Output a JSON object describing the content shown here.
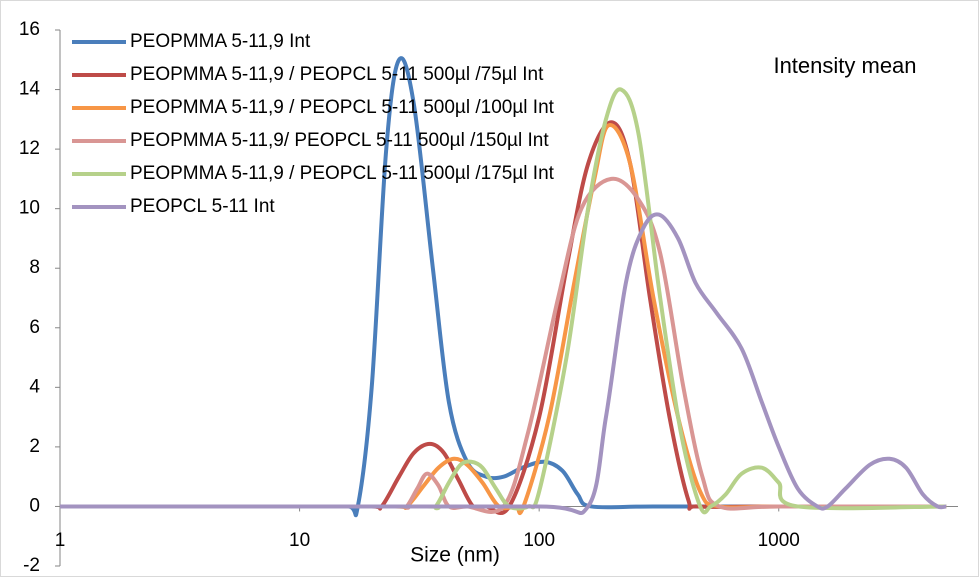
{
  "chart_data": {
    "type": "line",
    "annotation": "Intensity mean",
    "x_label": "Size (nm)",
    "xscale": "log",
    "xlim": [
      1,
      5600
    ],
    "ylim": [
      -2,
      16
    ],
    "xticks": [
      1,
      10,
      100,
      1000
    ],
    "yticks": [
      -2,
      0,
      2,
      4,
      6,
      8,
      10,
      12,
      14,
      16
    ],
    "legend": "top-left",
    "series": [
      {
        "name": "PEOPMMA 5-11,9 Int",
        "color": "#4a7ebb",
        "x": [
          1,
          10,
          16,
          17.5,
          20,
          23,
          26,
          30,
          36,
          42,
          50,
          60,
          71,
          85,
          105,
          125,
          145,
          165,
          300,
          1000,
          5000
        ],
        "values": [
          0,
          0,
          0,
          0,
          4,
          12,
          15,
          13.5,
          8,
          3.5,
          1.5,
          1,
          1,
          1.3,
          1.5,
          1.2,
          0.4,
          0,
          0,
          0,
          0
        ]
      },
      {
        "name": "PEOPMMA 5-11,9 / PEOPCL 5-11 500µl /75µl Int",
        "color": "#be4b48",
        "x": [
          1,
          10,
          20,
          22,
          26,
          30,
          35,
          40,
          46,
          53,
          60,
          75,
          100,
          130,
          160,
          200,
          240,
          290,
          350,
          420,
          460,
          1000,
          5000
        ],
        "values": [
          0,
          0,
          0,
          0,
          1,
          1.8,
          2.1,
          1.8,
          0.9,
          0,
          0,
          0,
          3,
          8,
          11.5,
          12.9,
          11.5,
          7,
          3,
          0.2,
          0,
          0,
          0
        ]
      },
      {
        "name": "PEOPMMA 5-11,9 / PEOPCL 5-11 500µl /100µl Int",
        "color": "#f79646",
        "x": [
          1,
          10,
          25,
          28,
          33,
          38,
          44,
          50,
          58,
          68,
          80,
          86,
          110,
          140,
          170,
          195,
          240,
          300,
          380,
          470,
          565,
          1000,
          5000
        ],
        "values": [
          0,
          0,
          0,
          0,
          0.7,
          1.3,
          1.6,
          1.4,
          0.8,
          0,
          0,
          0,
          3,
          7.5,
          11,
          12.8,
          11.5,
          7,
          3,
          0.5,
          0,
          0,
          0
        ]
      },
      {
        "name": "PEOPMMA 5-11,9/ PEOPCL 5-11 500µl /150µl Int",
        "color": "#d99694",
        "x": [
          1,
          10,
          26,
          28,
          31,
          34,
          38,
          42,
          50,
          71,
          90,
          120,
          150,
          200,
          260,
          320,
          400,
          480,
          565,
          1000,
          5000
        ],
        "values": [
          0,
          0,
          0,
          0,
          0.6,
          1.1,
          0.7,
          0,
          0,
          0,
          2.5,
          7,
          10,
          11,
          10.3,
          8.5,
          4,
          1,
          0,
          0,
          0
        ]
      },
      {
        "name": "PEOPMMA 5-11,9 / PEOPCL 5-11 500µl /175µl Int",
        "color": "#b6d18a",
        "x": [
          1,
          10,
          34,
          37,
          42,
          47,
          52,
          58,
          66,
          75,
          90,
          100,
          130,
          160,
          190,
          220,
          260,
          320,
          390,
          470,
          520,
          600,
          700,
          850,
          1000,
          1200,
          5000
        ],
        "values": [
          0,
          0,
          0,
          0,
          0.8,
          1.4,
          1.5,
          1.3,
          0.6,
          0,
          0,
          0.5,
          5,
          10,
          13,
          14,
          12.5,
          7,
          2.5,
          0,
          0,
          0.4,
          1.1,
          1.3,
          0.8,
          0,
          0
        ]
      },
      {
        "name": "PEOPCL 5-11 Int",
        "color": "#a393c0",
        "x": [
          1,
          10,
          100,
          160,
          190,
          230,
          270,
          316,
          380,
          450,
          550,
          700,
          850,
          1000,
          1200,
          1450,
          1600,
          1900,
          2400,
          2900,
          3400,
          4000,
          4600,
          5000
        ],
        "values": [
          0,
          0,
          0,
          0,
          3,
          7.5,
          9.3,
          9.8,
          9,
          7.5,
          6.5,
          5.3,
          3.5,
          2,
          0.6,
          0,
          0,
          0.6,
          1.4,
          1.6,
          1.3,
          0.4,
          0,
          0
        ]
      }
    ]
  }
}
